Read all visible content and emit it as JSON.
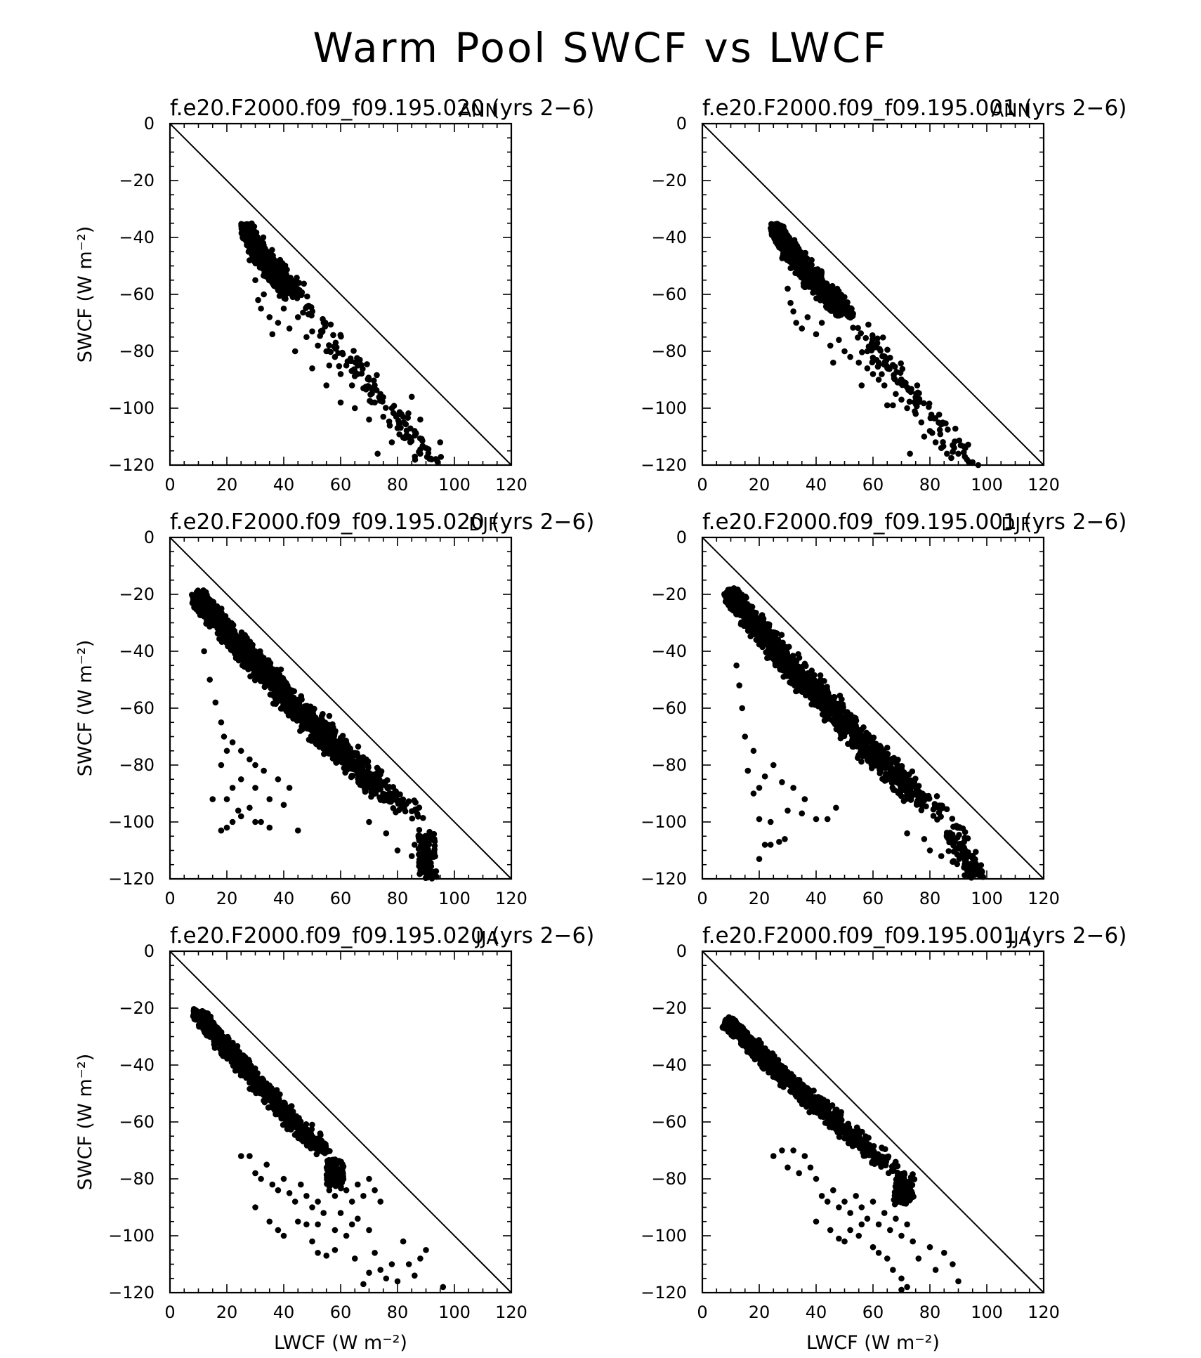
{
  "figure": {
    "title": "Warm Pool SWCF vs LWCF"
  },
  "chart_data": [
    {
      "type": "scatter",
      "title": "f.e20.F2000.f09_f09.195.020 (yrs 2−6)",
      "season": "ANN",
      "xlabel": "",
      "ylabel": "SWCF (W m⁻²)",
      "xlim": [
        0,
        120
      ],
      "ylim": [
        -120,
        0
      ],
      "xticks": [
        "0",
        "20",
        "40",
        "60",
        "80",
        "100",
        "120"
      ],
      "yticks": [
        "0",
        "−20",
        "−40",
        "−60",
        "−80",
        "−100",
        "−120"
      ],
      "reference_line": [
        [
          0,
          0
        ],
        [
          120,
          -120
        ]
      ],
      "cloud": {
        "top_x": [
          27,
          47
        ],
        "top_y": [
          -37,
          -60
        ],
        "steep_x": [
          27,
          32
        ],
        "steep_y": [
          -37,
          -60
        ],
        "end_x": [
          80,
          95
        ],
        "end_y": [
          -95,
          -118
        ],
        "n": 900,
        "spread": 4
      },
      "points": [
        [
          28,
          -48
        ],
        [
          30,
          -55
        ],
        [
          31,
          -62
        ],
        [
          32,
          -65
        ],
        [
          33,
          -60
        ],
        [
          35,
          -68
        ],
        [
          38,
          -70
        ],
        [
          40,
          -65
        ],
        [
          42,
          -72
        ],
        [
          45,
          -68
        ],
        [
          48,
          -75
        ],
        [
          50,
          -73
        ],
        [
          52,
          -78
        ],
        [
          55,
          -80
        ],
        [
          56,
          -85
        ],
        [
          58,
          -82
        ],
        [
          60,
          -88
        ],
        [
          62,
          -85
        ],
        [
          64,
          -92
        ],
        [
          66,
          -88
        ],
        [
          68,
          -93
        ],
        [
          70,
          -90
        ],
        [
          72,
          -98
        ],
        [
          74,
          -95
        ],
        [
          75,
          -103
        ],
        [
          78,
          -100
        ],
        [
          80,
          -107
        ],
        [
          82,
          -103
        ],
        [
          84,
          -110
        ],
        [
          86,
          -108
        ],
        [
          88,
          -116
        ],
        [
          90,
          -114
        ],
        [
          92,
          -118
        ],
        [
          95,
          -112
        ],
        [
          73,
          -116
        ],
        [
          55,
          -92
        ],
        [
          60,
          -98
        ],
        [
          65,
          -100
        ],
        [
          70,
          -104
        ],
        [
          78,
          -112
        ],
        [
          85,
          -96
        ],
        [
          88,
          -104
        ],
        [
          50,
          -86
        ],
        [
          44,
          -80
        ],
        [
          36,
          -74
        ]
      ]
    },
    {
      "type": "scatter",
      "title": "f.e20.F2000.f09_f09.195.001 (yrs 2−6)",
      "season": "ANN",
      "xlabel": "",
      "ylabel": "",
      "xlim": [
        0,
        120
      ],
      "ylim": [
        -120,
        0
      ],
      "xticks": [
        "0",
        "20",
        "40",
        "60",
        "80",
        "100",
        "120"
      ],
      "yticks": [
        "0",
        "−20",
        "−40",
        "−60",
        "−80",
        "−100",
        "−120"
      ],
      "reference_line": [
        [
          0,
          0
        ],
        [
          120,
          -120
        ]
      ],
      "cloud": {
        "top_x": [
          26,
          55
        ],
        "top_y": [
          -37,
          -68
        ],
        "steep_x": [
          26,
          34
        ],
        "steep_y": [
          -37,
          -62
        ],
        "end_x": [
          82,
          97
        ],
        "end_y": [
          -98,
          -119
        ],
        "n": 900,
        "spread": 4
      },
      "points": [
        [
          30,
          -58
        ],
        [
          31,
          -63
        ],
        [
          32,
          -66
        ],
        [
          33,
          -70
        ],
        [
          35,
          -72
        ],
        [
          37,
          -68
        ],
        [
          40,
          -74
        ],
        [
          42,
          -70
        ],
        [
          45,
          -78
        ],
        [
          48,
          -76
        ],
        [
          52,
          -82
        ],
        [
          55,
          -84
        ],
        [
          56,
          -92
        ],
        [
          58,
          -86
        ],
        [
          60,
          -88
        ],
        [
          62,
          -90
        ],
        [
          64,
          -92
        ],
        [
          65,
          -99
        ],
        [
          67,
          -99
        ],
        [
          68,
          -95
        ],
        [
          70,
          -97
        ],
        [
          72,
          -100
        ],
        [
          73,
          -116
        ],
        [
          75,
          -102
        ],
        [
          77,
          -105
        ],
        [
          78,
          -110
        ],
        [
          80,
          -108
        ],
        [
          82,
          -112
        ],
        [
          84,
          -114
        ],
        [
          86,
          -116
        ],
        [
          88,
          -113
        ],
        [
          90,
          -116
        ],
        [
          93,
          -118
        ],
        [
          95,
          -119
        ],
        [
          97,
          -120
        ],
        [
          50,
          -80
        ],
        [
          46,
          -84
        ],
        [
          58,
          -80
        ],
        [
          62,
          -84
        ]
      ]
    },
    {
      "type": "scatter",
      "title": "f.e20.F2000.f09_f09.195.020 (yrs 2−6)",
      "season": "DJF",
      "xlabel": "",
      "ylabel": "SWCF (W m⁻²)",
      "xlim": [
        0,
        120
      ],
      "ylim": [
        -120,
        0
      ],
      "xticks": [
        "0",
        "20",
        "40",
        "60",
        "80",
        "100",
        "120"
      ],
      "yticks": [
        "0",
        "−20",
        "−40",
        "−60",
        "−80",
        "−100",
        "−120"
      ],
      "reference_line": [
        [
          0,
          0
        ],
        [
          120,
          -120
        ]
      ],
      "cloud": {
        "top_x": [
          10,
          90
        ],
        "top_y": [
          -21,
          -100
        ],
        "steep_x": [
          10,
          40
        ],
        "steep_y": [
          -21,
          -70
        ],
        "end_x": [
          75,
          91
        ],
        "end_y": [
          -100,
          -118
        ],
        "n": 1500,
        "spread": 5
      },
      "points": [
        [
          18,
          -103
        ],
        [
          20,
          -102
        ],
        [
          22,
          -100
        ],
        [
          25,
          -98
        ],
        [
          28,
          -95
        ],
        [
          30,
          -100
        ],
        [
          32,
          -100
        ],
        [
          35,
          -102
        ],
        [
          45,
          -103
        ],
        [
          15,
          -92
        ],
        [
          20,
          -92
        ],
        [
          22,
          -88
        ],
        [
          18,
          -80
        ],
        [
          25,
          -85
        ],
        [
          20,
          -75
        ],
        [
          30,
          -88
        ],
        [
          35,
          -92
        ],
        [
          40,
          -94
        ],
        [
          24,
          -96
        ],
        [
          12,
          -40
        ],
        [
          14,
          -50
        ],
        [
          16,
          -58
        ],
        [
          18,
          -65
        ],
        [
          19,
          -70
        ],
        [
          22,
          -72
        ],
        [
          25,
          -75
        ],
        [
          28,
          -78
        ],
        [
          30,
          -80
        ],
        [
          33,
          -82
        ],
        [
          38,
          -85
        ],
        [
          42,
          -88
        ],
        [
          85,
          -112
        ],
        [
          88,
          -116
        ],
        [
          90,
          -118
        ],
        [
          86,
          -108
        ],
        [
          80,
          -110
        ],
        [
          76,
          -104
        ],
        [
          70,
          -100
        ]
      ]
    },
    {
      "type": "scatter",
      "title": "f.e20.F2000.f09_f09.195.001 (yrs 2−6)",
      "season": "DJF",
      "xlabel": "",
      "ylabel": "",
      "xlim": [
        0,
        120
      ],
      "ylim": [
        -120,
        0
      ],
      "xticks": [
        "0",
        "20",
        "40",
        "60",
        "80",
        "100",
        "120"
      ],
      "yticks": [
        "0",
        "−20",
        "−40",
        "−60",
        "−80",
        "−100",
        "−120"
      ],
      "reference_line": [
        [
          0,
          0
        ],
        [
          120,
          -120
        ]
      ],
      "cloud": {
        "top_x": [
          10,
          88
        ],
        "top_y": [
          -20,
          -100
        ],
        "steep_x": [
          10,
          42
        ],
        "steep_y": [
          -20,
          -72
        ],
        "end_x": [
          75,
          98
        ],
        "end_y": [
          -100,
          -118
        ],
        "n": 1500,
        "spread": 5
      },
      "points": [
        [
          20,
          -113
        ],
        [
          22,
          -108
        ],
        [
          24,
          -108
        ],
        [
          27,
          -107
        ],
        [
          29,
          -106
        ],
        [
          20,
          -99
        ],
        [
          24,
          -100
        ],
        [
          30,
          -96
        ],
        [
          35,
          -97
        ],
        [
          40,
          -99
        ],
        [
          44,
          -99
        ],
        [
          47,
          -95
        ],
        [
          18,
          -90
        ],
        [
          20,
          -88
        ],
        [
          16,
          -82
        ],
        [
          22,
          -84
        ],
        [
          25,
          -80
        ],
        [
          28,
          -86
        ],
        [
          32,
          -88
        ],
        [
          36,
          -92
        ],
        [
          14,
          -60
        ],
        [
          15,
          -70
        ],
        [
          18,
          -75
        ],
        [
          12,
          -45
        ],
        [
          13,
          -52
        ],
        [
          80,
          -110
        ],
        [
          84,
          -112
        ],
        [
          88,
          -114
        ],
        [
          92,
          -116
        ],
        [
          95,
          -115
        ],
        [
          98,
          -118
        ],
        [
          78,
          -106
        ],
        [
          72,
          -104
        ]
      ]
    },
    {
      "type": "scatter",
      "title": "f.e20.F2000.f09_f09.195.020 (yrs 2−6)",
      "season": "JJA",
      "xlabel": "LWCF (W m⁻²)",
      "ylabel": "SWCF (W m⁻²)",
      "xlim": [
        0,
        120
      ],
      "ylim": [
        -120,
        0
      ],
      "xticks": [
        "0",
        "20",
        "40",
        "60",
        "80",
        "100",
        "120"
      ],
      "yticks": [
        "0",
        "−20",
        "−40",
        "−60",
        "−80",
        "−100",
        "−120"
      ],
      "reference_line": [
        [
          0,
          0
        ],
        [
          120,
          -120
        ]
      ],
      "cloud": {
        "top_x": [
          10,
          58
        ],
        "top_y": [
          -22,
          -72
        ],
        "steep_x": [
          10,
          42
        ],
        "steep_y": [
          -22,
          -68
        ],
        "end_x": [
          55,
          58
        ],
        "end_y": [
          -70,
          -76
        ],
        "n": 800,
        "spread": 4
      },
      "points": [
        [
          25,
          -72
        ],
        [
          28,
          -72
        ],
        [
          30,
          -78
        ],
        [
          32,
          -80
        ],
        [
          34,
          -75
        ],
        [
          36,
          -82
        ],
        [
          38,
          -84
        ],
        [
          40,
          -80
        ],
        [
          42,
          -85
        ],
        [
          44,
          -88
        ],
        [
          46,
          -82
        ],
        [
          48,
          -86
        ],
        [
          50,
          -90
        ],
        [
          52,
          -88
        ],
        [
          54,
          -92
        ],
        [
          56,
          -84
        ],
        [
          58,
          -86
        ],
        [
          60,
          -80
        ],
        [
          62,
          -84
        ],
        [
          64,
          -88
        ],
        [
          66,
          -82
        ],
        [
          68,
          -86
        ],
        [
          70,
          -80
        ],
        [
          72,
          -84
        ],
        [
          74,
          -88
        ],
        [
          30,
          -90
        ],
        [
          35,
          -95
        ],
        [
          38,
          -98
        ],
        [
          40,
          -100
        ],
        [
          45,
          -95
        ],
        [
          50,
          -102
        ],
        [
          52,
          -106
        ],
        [
          55,
          -107
        ],
        [
          58,
          -105
        ],
        [
          62,
          -100
        ],
        [
          65,
          -108
        ],
        [
          68,
          -117
        ],
        [
          70,
          -113
        ],
        [
          72,
          -106
        ],
        [
          74,
          -112
        ],
        [
          76,
          -115
        ],
        [
          78,
          -110
        ],
        [
          80,
          -116
        ],
        [
          82,
          -102
        ],
        [
          84,
          -110
        ],
        [
          86,
          -114
        ],
        [
          88,
          -108
        ],
        [
          90,
          -105
        ],
        [
          96,
          -118
        ],
        [
          60,
          -92
        ],
        [
          64,
          -96
        ],
        [
          58,
          -98
        ],
        [
          66,
          -94
        ],
        [
          70,
          -98
        ],
        [
          48,
          -96
        ],
        [
          52,
          -96
        ]
      ]
    },
    {
      "type": "scatter",
      "title": "f.e20.F2000.f09_f09.195.001 (yrs 2−6)",
      "season": "JJA",
      "xlabel": "LWCF (W m⁻²)",
      "ylabel": "",
      "xlim": [
        0,
        120
      ],
      "ylim": [
        -120,
        0
      ],
      "xticks": [
        "0",
        "20",
        "40",
        "60",
        "80",
        "100",
        "120"
      ],
      "yticks": [
        "0",
        "−20",
        "−40",
        "−60",
        "−80",
        "−100",
        "−120"
      ],
      "reference_line": [
        [
          0,
          0
        ],
        [
          120,
          -120
        ]
      ],
      "cloud": {
        "top_x": [
          9,
          72
        ],
        "top_y": [
          -25,
          -78
        ],
        "steep_x": [
          9,
          45
        ],
        "steep_y": [
          -25,
          -68
        ],
        "end_x": [
          60,
          70
        ],
        "end_y": [
          -72,
          -82
        ],
        "n": 900,
        "spread": 4
      },
      "points": [
        [
          25,
          -72
        ],
        [
          28,
          -70
        ],
        [
          30,
          -76
        ],
        [
          32,
          -70
        ],
        [
          34,
          -78
        ],
        [
          36,
          -72
        ],
        [
          38,
          -76
        ],
        [
          40,
          -80
        ],
        [
          42,
          -86
        ],
        [
          44,
          -88
        ],
        [
          46,
          -84
        ],
        [
          48,
          -90
        ],
        [
          50,
          -88
        ],
        [
          52,
          -92
        ],
        [
          54,
          -86
        ],
        [
          56,
          -90
        ],
        [
          58,
          -94
        ],
        [
          60,
          -88
        ],
        [
          62,
          -96
        ],
        [
          64,
          -92
        ],
        [
          66,
          -98
        ],
        [
          68,
          -94
        ],
        [
          70,
          -100
        ],
        [
          72,
          -96
        ],
        [
          74,
          -102
        ],
        [
          40,
          -95
        ],
        [
          45,
          -98
        ],
        [
          48,
          -101
        ],
        [
          50,
          -102
        ],
        [
          55,
          -100
        ],
        [
          60,
          -104
        ],
        [
          62,
          -106
        ],
        [
          65,
          -108
        ],
        [
          67,
          -112
        ],
        [
          70,
          -115
        ],
        [
          72,
          -118
        ],
        [
          76,
          -108
        ],
        [
          80,
          -104
        ],
        [
          82,
          -112
        ],
        [
          85,
          -106
        ],
        [
          88,
          -110
        ],
        [
          90,
          -116
        ],
        [
          70,
          -119
        ],
        [
          56,
          -96
        ],
        [
          52,
          -98
        ]
      ]
    }
  ]
}
